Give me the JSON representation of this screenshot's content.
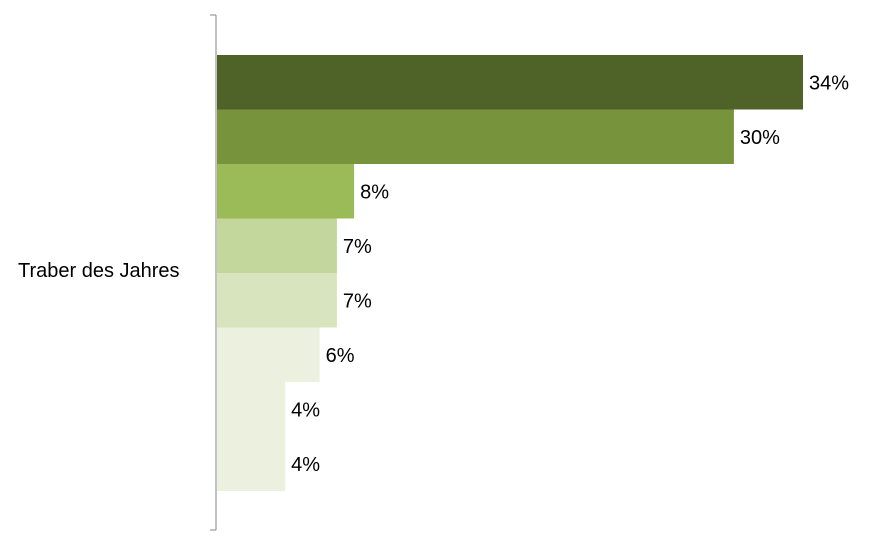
{
  "chart_data": {
    "type": "bar",
    "orientation": "horizontal",
    "categories": [
      "Traber des Jahres"
    ],
    "series": [
      {
        "values": [
          34
        ],
        "label": "34%",
        "color": "#4f6228"
      },
      {
        "values": [
          30
        ],
        "label": "30%",
        "color": "#77933c"
      },
      {
        "values": [
          8
        ],
        "label": "8%",
        "color": "#9bbb59"
      },
      {
        "values": [
          7
        ],
        "label": "7%",
        "color": "#c3d69b"
      },
      {
        "values": [
          7
        ],
        "label": "7%",
        "color": "#d7e4bd"
      },
      {
        "values": [
          6
        ],
        "label": "6%",
        "color": "#ebf1de"
      },
      {
        "values": [
          4
        ],
        "label": "4%",
        "color": "#ebf1de"
      },
      {
        "values": [
          4
        ],
        "label": "4%",
        "color": "#ebf1de"
      }
    ],
    "xlim": [
      0,
      34
    ],
    "grid": false,
    "legend": "none",
    "data_labels": true,
    "value_unit": "%"
  }
}
